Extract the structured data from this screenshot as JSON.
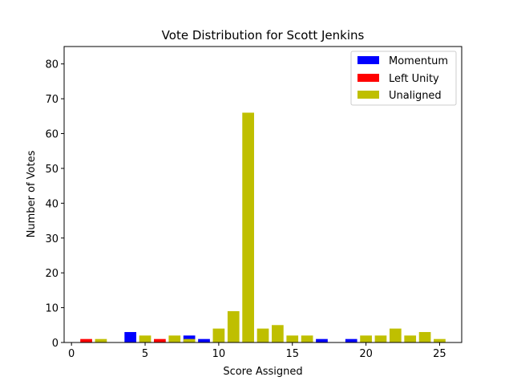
{
  "chart_data": {
    "type": "bar",
    "title": "Vote Distribution for Scott Jenkins",
    "xlabel": "Score Assigned",
    "ylabel": "Number of Votes",
    "xlim": [
      -0.5,
      26.5
    ],
    "ylim": [
      0,
      85
    ],
    "xticks": [
      0,
      5,
      10,
      15,
      20,
      25
    ],
    "yticks": [
      0,
      10,
      20,
      30,
      40,
      50,
      60,
      70,
      80
    ],
    "grid": false,
    "legend_position": "top-right",
    "series": [
      {
        "name": "Momentum",
        "color": "#0000ff",
        "points": [
          {
            "x": 4,
            "y": 3
          },
          {
            "x": 8,
            "y": 2
          },
          {
            "x": 9,
            "y": 1
          },
          {
            "x": 17,
            "y": 1
          },
          {
            "x": 19,
            "y": 1
          }
        ]
      },
      {
        "name": "Left Unity",
        "color": "#ff0000",
        "points": [
          {
            "x": 1,
            "y": 1
          },
          {
            "x": 6,
            "y": 1
          }
        ]
      },
      {
        "name": "Unaligned",
        "color": "#bfbf00",
        "points": [
          {
            "x": 2,
            "y": 1
          },
          {
            "x": 5,
            "y": 2
          },
          {
            "x": 7,
            "y": 2
          },
          {
            "x": 8,
            "y": 1
          },
          {
            "x": 10,
            "y": 4
          },
          {
            "x": 11,
            "y": 9
          },
          {
            "x": 12,
            "y": 66
          },
          {
            "x": 13,
            "y": 4
          },
          {
            "x": 14,
            "y": 5
          },
          {
            "x": 15,
            "y": 2
          },
          {
            "x": 16,
            "y": 2
          },
          {
            "x": 20,
            "y": 2
          },
          {
            "x": 21,
            "y": 2
          },
          {
            "x": 22,
            "y": 4
          },
          {
            "x": 23,
            "y": 2
          },
          {
            "x": 24,
            "y": 3
          },
          {
            "x": 25,
            "y": 1
          }
        ]
      }
    ]
  }
}
